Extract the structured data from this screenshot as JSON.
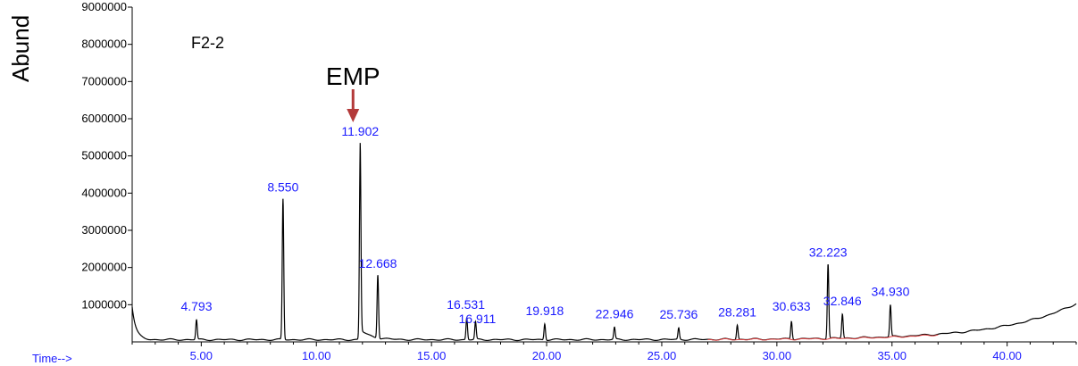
{
  "chart_data": {
    "type": "line",
    "title": "",
    "xlabel": "Time-->",
    "ylabel": "Abund",
    "sample_label": "F2-2",
    "xlim": [
      2.0,
      43.0
    ],
    "ylim": [
      0,
      9000000
    ],
    "x_ticks": [
      "5.00",
      "10.00",
      "15.00",
      "20.00",
      "25.00",
      "30.00",
      "35.00",
      "40.00"
    ],
    "y_ticks": [
      "1000000",
      "2000000",
      "3000000",
      "4000000",
      "5000000",
      "6000000",
      "7000000",
      "8000000",
      "9000000"
    ],
    "series": [
      {
        "color": "#000000",
        "peaks": [
          {
            "rt": 4.793,
            "label": "4.793",
            "abundance": 600000
          },
          {
            "rt": 8.55,
            "label": "8.550",
            "abundance": 3850000
          },
          {
            "rt": 11.902,
            "label": "11.902",
            "abundance": 5350000
          },
          {
            "rt": 12.668,
            "label": "12.668",
            "abundance": 1800000
          },
          {
            "rt": 16.531,
            "label": "16.531",
            "abundance": 650000
          },
          {
            "rt": 16.911,
            "label": "16.911",
            "abundance": 550000
          },
          {
            "rt": 19.918,
            "label": "19.918",
            "abundance": 480000
          },
          {
            "rt": 22.946,
            "label": "22.946",
            "abundance": 400000
          },
          {
            "rt": 25.736,
            "label": "25.736",
            "abundance": 380000
          },
          {
            "rt": 28.281,
            "label": "28.281",
            "abundance": 450000
          },
          {
            "rt": 30.633,
            "label": "30.633",
            "abundance": 550000
          },
          {
            "rt": 32.223,
            "label": "32.223",
            "abundance": 2100000
          },
          {
            "rt": 32.846,
            "label": "32.846",
            "abundance": 750000
          },
          {
            "rt": 34.93,
            "label": "34.930",
            "abundance": 1000000
          }
        ]
      }
    ],
    "annotations": [
      {
        "text": "EMP",
        "target_rt": 11.902,
        "arrow_color": "#b33a3a"
      }
    ],
    "colors": {
      "axis": "#000000",
      "tick_text": "#000000",
      "peak_labels": "#1a1aff",
      "baseline": "#e04040",
      "arrow": "#b33a3a"
    }
  }
}
